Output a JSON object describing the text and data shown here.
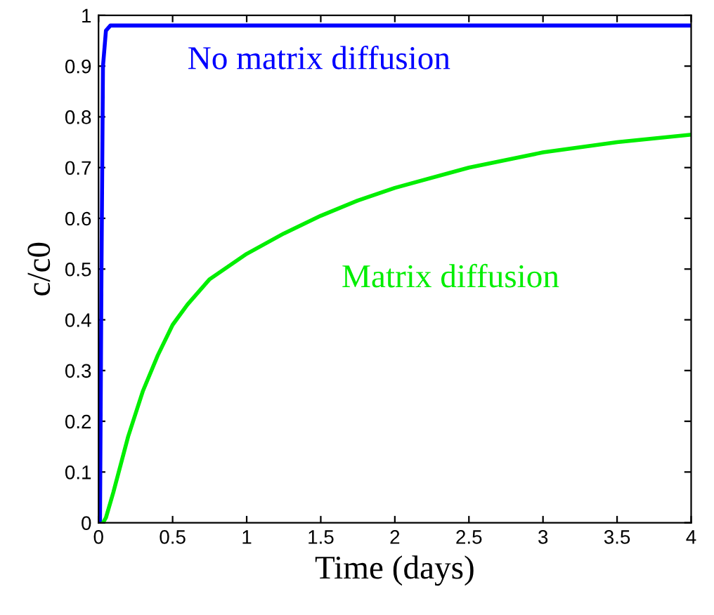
{
  "chart_data": {
    "type": "line",
    "xlabel": "Time (days)",
    "ylabel": "c/c0",
    "xlim": [
      0,
      4
    ],
    "ylim": [
      0,
      1
    ],
    "xticks": [
      0,
      0.5,
      1,
      1.5,
      2,
      2.5,
      3,
      3.5,
      4
    ],
    "yticks": [
      0,
      0.1,
      0.2,
      0.3,
      0.4,
      0.5,
      0.6,
      0.7,
      0.8,
      0.9,
      1
    ],
    "grid": false,
    "legend": false,
    "line_style": "solid",
    "marker": "none",
    "series": [
      {
        "name": "No matrix diffusion",
        "color": "#0000ff",
        "x": [
          0,
          0.01,
          0.02,
          0.03,
          0.05,
          0.08,
          4
        ],
        "values": [
          0,
          0,
          0.5,
          0.9,
          0.97,
          0.98,
          0.98
        ]
      },
      {
        "name": "Matrix diffusion",
        "color": "#00ee00",
        "x": [
          0.03,
          0.05,
          0.1,
          0.2,
          0.3,
          0.4,
          0.5,
          0.6,
          0.75,
          1,
          1.25,
          1.5,
          1.75,
          2,
          2.5,
          3,
          3.5,
          4
        ],
        "values": [
          0,
          0.01,
          0.06,
          0.17,
          0.26,
          0.33,
          0.39,
          0.43,
          0.48,
          0.53,
          0.57,
          0.605,
          0.635,
          0.66,
          0.7,
          0.73,
          0.75,
          0.765
        ]
      }
    ]
  }
}
